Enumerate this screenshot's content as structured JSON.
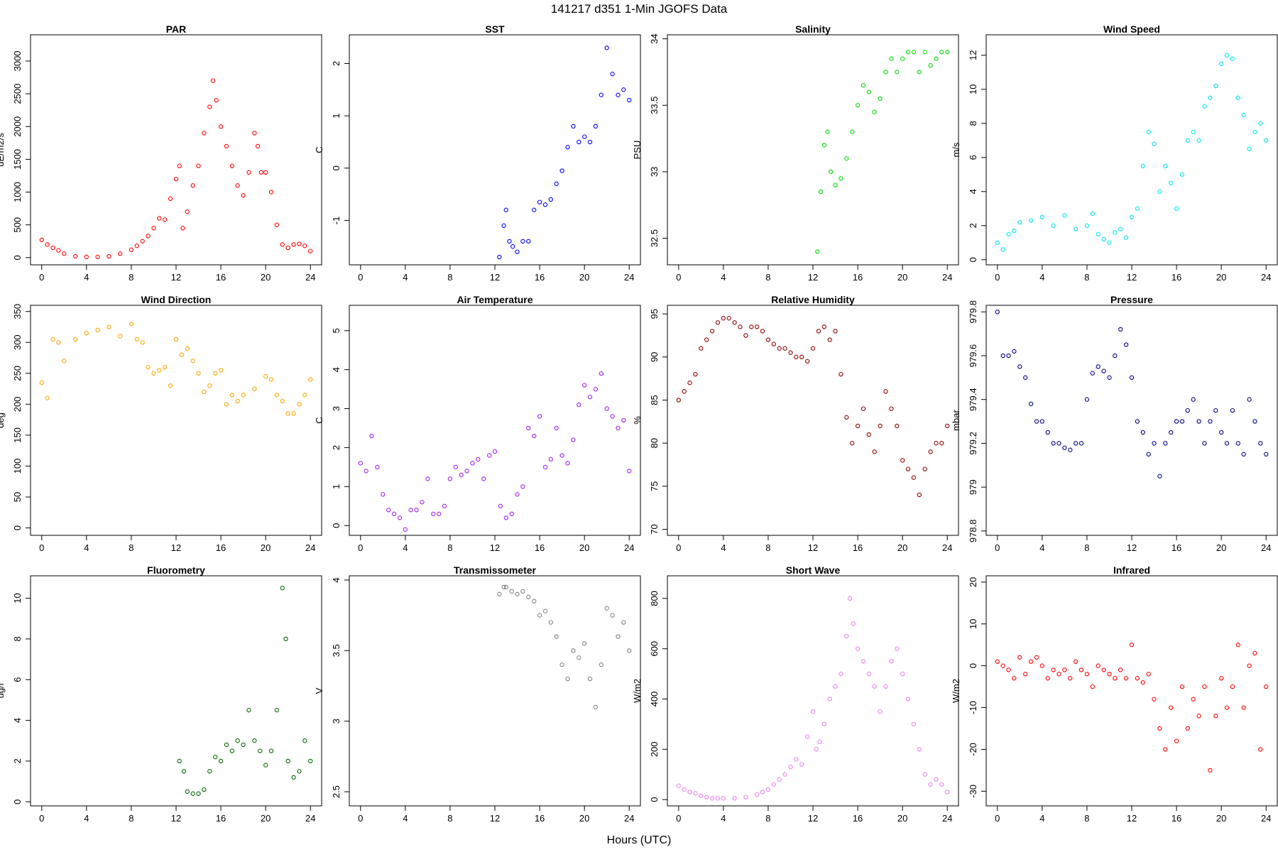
{
  "figure": {
    "title": "141217   d351   1-Min  JGOFS Data",
    "xlabel": "Hours (UTC)"
  },
  "chart_data": [
    {
      "type": "scatter",
      "title": "PAR",
      "ylabel": "uE/m2/s",
      "color": "#ff0000",
      "xlim": [
        -1,
        25
      ],
      "ylim": [
        -110,
        3400
      ],
      "xticks": [
        0,
        4,
        8,
        12,
        16,
        20,
        24
      ],
      "yticks": [
        0,
        500,
        1000,
        1500,
        2000,
        2500,
        3000
      ],
      "x": [
        0,
        0.5,
        1,
        1.5,
        2,
        3,
        4,
        5,
        6,
        7,
        8,
        8.5,
        9,
        9.5,
        10,
        10.5,
        11,
        11.5,
        12,
        12.3,
        12.6,
        13,
        13.5,
        14,
        14.5,
        15,
        15.3,
        15.6,
        16,
        16.5,
        17,
        17.5,
        18,
        18.5,
        19,
        19.3,
        19.6,
        20,
        20.5,
        21,
        21.5,
        22,
        22.5,
        23,
        23.5,
        24
      ],
      "y": [
        270,
        200,
        150,
        110,
        60,
        20,
        10,
        10,
        20,
        60,
        120,
        180,
        250,
        330,
        450,
        600,
        580,
        900,
        1200,
        1400,
        450,
        700,
        1100,
        1400,
        1900,
        2300,
        2700,
        2400,
        2000,
        1700,
        1400,
        1100,
        950,
        1300,
        1900,
        1700,
        1300,
        1300,
        1000,
        500,
        200,
        150,
        200,
        210,
        180,
        100
      ]
    },
    {
      "type": "scatter",
      "title": "SST",
      "ylabel": "C",
      "color": "#0000ff",
      "xlim": [
        -1,
        25
      ],
      "ylim": [
        -1.85,
        2.55
      ],
      "xticks": [
        0,
        4,
        8,
        12,
        16,
        20,
        24
      ],
      "yticks": [
        -1,
        0,
        1,
        2
      ],
      "x": [
        12.4,
        12.8,
        13,
        13.3,
        13.6,
        14,
        14.5,
        15,
        15.5,
        16,
        16.5,
        17,
        17.5,
        18,
        18.5,
        19,
        19.5,
        20,
        20.5,
        21,
        21.5,
        22,
        22.5,
        23,
        23.5,
        24
      ],
      "y": [
        -1.7,
        -1.1,
        -0.8,
        -1.4,
        -1.5,
        -1.6,
        -1.4,
        -1.4,
        -0.8,
        -0.65,
        -0.7,
        -0.6,
        -0.3,
        -0.05,
        0.4,
        0.8,
        0.5,
        0.6,
        0.5,
        0.8,
        1.4,
        2.3,
        1.8,
        1.4,
        1.5,
        1.3
      ]
    },
    {
      "type": "scatter",
      "title": "Salinity",
      "ylabel": "PSU",
      "color": "#00dd00",
      "xlim": [
        -1,
        25
      ],
      "ylim": [
        32.3,
        34.03
      ],
      "xticks": [
        0,
        4,
        8,
        12,
        16,
        20,
        24
      ],
      "yticks": [
        32.5,
        33.0,
        33.5,
        34.0
      ],
      "x": [
        12.4,
        12.7,
        13,
        13.3,
        13.6,
        14,
        14.5,
        15,
        15.5,
        16,
        16.5,
        17,
        17.5,
        18,
        18.5,
        19,
        19.5,
        20,
        20.5,
        21,
        21.5,
        22,
        22.5,
        23,
        23.5,
        24
      ],
      "y": [
        32.4,
        32.85,
        33.2,
        33.3,
        33.0,
        32.9,
        32.95,
        33.1,
        33.3,
        33.5,
        33.65,
        33.6,
        33.45,
        33.55,
        33.75,
        33.85,
        33.75,
        33.85,
        33.9,
        33.9,
        33.75,
        33.9,
        33.8,
        33.85,
        33.9,
        33.9
      ]
    },
    {
      "type": "scatter",
      "title": "Wind Speed",
      "ylabel": "m/s",
      "color": "#00e5ee",
      "xlim": [
        -1,
        25
      ],
      "ylim": [
        -0.3,
        13.2
      ],
      "xticks": [
        0,
        4,
        8,
        12,
        16,
        20,
        24
      ],
      "yticks": [
        0,
        2,
        4,
        6,
        8,
        10,
        12
      ],
      "x": [
        0,
        0.5,
        1,
        1.5,
        2,
        3,
        4,
        5,
        6,
        7,
        8,
        8.5,
        9,
        9.5,
        10,
        10.5,
        11,
        11.5,
        12,
        12.5,
        13,
        13.5,
        14,
        14.5,
        15,
        15.5,
        16,
        16.5,
        17,
        17.5,
        18,
        18.5,
        19,
        19.5,
        20,
        20.5,
        21,
        21.5,
        22,
        22.5,
        23,
        23.5,
        24
      ],
      "y": [
        1,
        0.6,
        1.5,
        1.7,
        2.2,
        2.3,
        2.5,
        2.0,
        2.6,
        1.8,
        2.0,
        2.7,
        1.5,
        1.2,
        1.0,
        1.6,
        1.8,
        1.3,
        2.5,
        3.0,
        5.5,
        7.5,
        6.8,
        4.0,
        5.5,
        4.5,
        3.0,
        5.0,
        7.0,
        7.5,
        7.0,
        9.0,
        9.5,
        10.2,
        11.5,
        12.0,
        11.8,
        9.5,
        8.5,
        6.5,
        7.5,
        8.0,
        7.0
      ]
    },
    {
      "type": "scatter",
      "title": "Wind Direction",
      "ylabel": "deg",
      "color": "#ffa500",
      "xlim": [
        -1,
        25
      ],
      "ylim": [
        -12,
        360
      ],
      "xticks": [
        0,
        4,
        8,
        12,
        16,
        20,
        24
      ],
      "yticks": [
        0,
        50,
        100,
        150,
        200,
        250,
        300,
        350
      ],
      "x": [
        0,
        0.5,
        1,
        1.5,
        2,
        3,
        4,
        5,
        6,
        7,
        8,
        8.5,
        9,
        9.5,
        10,
        10.5,
        11,
        11.5,
        12,
        12.5,
        13,
        13.5,
        14,
        14.5,
        15,
        15.5,
        16,
        16.5,
        17,
        17.5,
        18,
        19,
        20,
        20.5,
        21,
        21.5,
        22,
        22.5,
        23,
        23.5,
        24
      ],
      "y": [
        235,
        210,
        305,
        300,
        270,
        305,
        315,
        320,
        325,
        310,
        330,
        305,
        300,
        260,
        250,
        255,
        260,
        230,
        305,
        280,
        290,
        270,
        250,
        220,
        230,
        250,
        255,
        200,
        215,
        205,
        215,
        225,
        245,
        240,
        215,
        205,
        185,
        185,
        200,
        215,
        240
      ]
    },
    {
      "type": "scatter",
      "title": "Air Temperature",
      "ylabel": "C",
      "color": "#a020f0",
      "xlim": [
        -1,
        25
      ],
      "ylim": [
        -0.25,
        5.65
      ],
      "xticks": [
        0,
        4,
        8,
        12,
        16,
        20,
        24
      ],
      "yticks": [
        0,
        1,
        2,
        3,
        4,
        5
      ],
      "x": [
        0,
        0.5,
        1,
        1.5,
        2,
        2.5,
        3,
        3.5,
        4,
        4.5,
        5,
        5.5,
        6,
        6.5,
        7,
        7.5,
        8,
        8.5,
        9,
        9.5,
        10,
        10.5,
        11,
        11.5,
        12,
        12.5,
        13,
        13.5,
        14,
        14.5,
        15,
        15.5,
        16,
        16.5,
        17,
        17.5,
        18,
        18.5,
        19,
        19.5,
        20,
        20.5,
        21,
        21.5,
        22,
        22.5,
        23,
        23.5,
        24
      ],
      "y": [
        1.6,
        1.4,
        2.3,
        1.5,
        0.8,
        0.4,
        0.3,
        0.2,
        -0.1,
        0.4,
        0.4,
        0.6,
        1.2,
        0.3,
        0.3,
        0.5,
        1.2,
        1.5,
        1.3,
        1.4,
        1.6,
        1.7,
        1.2,
        1.8,
        1.9,
        0.5,
        0.2,
        0.3,
        0.8,
        1.0,
        2.5,
        2.3,
        2.8,
        1.5,
        1.7,
        2.5,
        1.8,
        1.6,
        2.2,
        3.1,
        3.6,
        3.3,
        3.5,
        3.9,
        3.0,
        2.8,
        2.5,
        2.7,
        1.4
      ]
    },
    {
      "type": "scatter",
      "title": "Relative Humidity",
      "ylabel": "%",
      "color": "#8b0000",
      "xlim": [
        -1,
        25
      ],
      "ylim": [
        69.3,
        96
      ],
      "xticks": [
        0,
        4,
        8,
        12,
        16,
        20,
        24
      ],
      "yticks": [
        70,
        75,
        80,
        85,
        90,
        95
      ],
      "x": [
        0,
        0.5,
        1,
        1.5,
        2,
        2.5,
        3,
        3.5,
        4,
        4.5,
        5,
        5.5,
        6,
        6.5,
        7,
        7.5,
        8,
        8.5,
        9,
        9.5,
        10,
        10.5,
        11,
        11.5,
        12,
        12.5,
        13,
        13.5,
        14,
        14.5,
        15,
        15.5,
        16,
        16.5,
        17,
        17.5,
        18,
        18.5,
        19,
        19.5,
        20,
        20.5,
        21,
        21.5,
        22,
        22.5,
        23,
        23.5,
        24
      ],
      "y": [
        85,
        86,
        87,
        88,
        91,
        92,
        93,
        94,
        94.5,
        94.5,
        94,
        93.5,
        92.5,
        93.5,
        93.5,
        93,
        92,
        91.5,
        91,
        91,
        90.5,
        90,
        90,
        89.5,
        91,
        93,
        93.5,
        92,
        93,
        88,
        83,
        80,
        82,
        84,
        81,
        79,
        82,
        86,
        84,
        82,
        78,
        77,
        76,
        74,
        77,
        79,
        80,
        80,
        82
      ]
    },
    {
      "type": "scatter",
      "title": "Pressure",
      "ylabel": "mbar",
      "color": "#000080",
      "xlim": [
        -1,
        25
      ],
      "ylim": [
        978.78,
        979.83
      ],
      "xticks": [
        0,
        4,
        8,
        12,
        16,
        20,
        24
      ],
      "yticks": [
        978.8,
        979.0,
        979.2,
        979.4,
        979.6,
        979.8
      ],
      "x": [
        0,
        0.5,
        1,
        1.5,
        2,
        2.5,
        3,
        3.5,
        4,
        4.5,
        5,
        5.5,
        6,
        6.5,
        7,
        7.5,
        8,
        8.5,
        9,
        9.5,
        10,
        10.5,
        11,
        11.5,
        12,
        12.5,
        13,
        13.5,
        14,
        14.5,
        15,
        15.5,
        16,
        16.5,
        17,
        17.5,
        18,
        18.5,
        19,
        19.5,
        20,
        20.5,
        21,
        21.5,
        22,
        22.5,
        23,
        23.5,
        24
      ],
      "y": [
        979.8,
        979.6,
        979.6,
        979.62,
        979.55,
        979.5,
        979.38,
        979.3,
        979.3,
        979.25,
        979.2,
        979.2,
        979.18,
        979.17,
        979.2,
        979.2,
        979.4,
        979.52,
        979.55,
        979.53,
        979.5,
        979.6,
        979.72,
        979.65,
        979.5,
        979.3,
        979.25,
        979.15,
        979.2,
        979.05,
        979.2,
        979.25,
        979.3,
        979.3,
        979.35,
        979.4,
        979.3,
        979.2,
        979.3,
        979.35,
        979.25,
        979.2,
        979.35,
        979.2,
        979.15,
        979.4,
        979.3,
        979.2,
        979.15
      ]
    },
    {
      "type": "scatter",
      "title": "Fluorometry",
      "ylabel": "ug/l",
      "color": "#006400",
      "xlim": [
        -1,
        25
      ],
      "ylim": [
        -0.2,
        11.1
      ],
      "xticks": [
        0,
        4,
        8,
        12,
        16,
        20,
        24
      ],
      "yticks": [
        0,
        2,
        4,
        6,
        8,
        10
      ],
      "x": [
        12.3,
        12.7,
        13,
        13.5,
        14,
        14.5,
        15,
        15.5,
        16,
        16.5,
        17,
        17.5,
        18,
        18.5,
        19,
        19.5,
        20,
        20.5,
        21,
        21.5,
        21.8,
        22,
        22.5,
        23,
        23.5,
        24
      ],
      "y": [
        2.0,
        1.5,
        0.5,
        0.4,
        0.4,
        0.6,
        1.5,
        2.2,
        2.0,
        2.8,
        2.5,
        3.0,
        2.8,
        4.5,
        3.0,
        2.5,
        1.8,
        2.5,
        4.5,
        10.5,
        8.0,
        2.0,
        1.2,
        1.5,
        3.0,
        2.0
      ]
    },
    {
      "type": "scatter",
      "title": "Transmissometer",
      "ylabel": "V",
      "color": "#808080",
      "xlim": [
        -1,
        25
      ],
      "ylim": [
        2.4,
        4.03
      ],
      "xticks": [
        0,
        4,
        8,
        12,
        16,
        20,
        24
      ],
      "yticks": [
        2.5,
        3.0,
        3.5,
        4.0
      ],
      "x": [
        12.4,
        12.8,
        13,
        13.5,
        14,
        14.5,
        15,
        15.5,
        16,
        16.5,
        17,
        17.5,
        18,
        18.5,
        19,
        19.5,
        20,
        20.5,
        21,
        21.5,
        22,
        22.5,
        23,
        23.5,
        24
      ],
      "y": [
        3.9,
        3.95,
        3.95,
        3.92,
        3.9,
        3.92,
        3.88,
        3.85,
        3.75,
        3.78,
        3.7,
        3.6,
        3.4,
        3.3,
        3.5,
        3.45,
        3.55,
        3.3,
        3.1,
        3.4,
        3.8,
        3.75,
        3.6,
        3.7,
        3.5
      ]
    },
    {
      "type": "scatter",
      "title": "Short Wave",
      "ylabel": "W/m2",
      "color": "#ee82ee",
      "xlim": [
        -1,
        25
      ],
      "ylim": [
        -25,
        890
      ],
      "xticks": [
        0,
        4,
        8,
        12,
        16,
        20,
        24
      ],
      "yticks": [
        0,
        200,
        400,
        600,
        800
      ],
      "x": [
        0,
        0.5,
        1,
        1.5,
        2,
        2.5,
        3,
        3.5,
        4,
        5,
        6,
        7,
        7.5,
        8,
        8.5,
        9,
        9.5,
        10,
        10.5,
        11,
        11.5,
        12,
        12.3,
        12.6,
        13,
        13.5,
        14,
        14.5,
        15,
        15.3,
        15.6,
        16,
        16.5,
        17,
        17.5,
        18,
        18.5,
        19,
        19.5,
        20,
        20.5,
        21,
        21.5,
        22,
        22.5,
        23,
        23.5,
        24
      ],
      "y": [
        55,
        40,
        30,
        25,
        15,
        10,
        5,
        5,
        5,
        5,
        10,
        20,
        30,
        40,
        60,
        80,
        100,
        130,
        160,
        140,
        250,
        350,
        200,
        230,
        300,
        400,
        450,
        500,
        650,
        800,
        700,
        600,
        550,
        500,
        450,
        350,
        450,
        550,
        600,
        500,
        400,
        300,
        200,
        100,
        60,
        80,
        60,
        30
      ]
    },
    {
      "type": "scatter",
      "title": "Infrared",
      "ylabel": "W/m2",
      "color": "#ff0000",
      "xlim": [
        -1,
        25
      ],
      "ylim": [
        -33.5,
        21.5
      ],
      "xticks": [
        0,
        4,
        8,
        12,
        16,
        20,
        24
      ],
      "yticks": [
        -30,
        -20,
        -10,
        0,
        10,
        20
      ],
      "x": [
        0,
        0.5,
        1,
        1.5,
        2,
        2.5,
        3,
        3.5,
        4,
        4.5,
        5,
        5.5,
        6,
        6.5,
        7,
        7.5,
        8,
        8.5,
        9,
        9.5,
        10,
        10.5,
        11,
        11.5,
        12,
        12.5,
        13,
        13.5,
        14,
        14.5,
        15,
        15.5,
        16,
        16.5,
        17,
        17.5,
        18,
        18.5,
        19,
        19.5,
        20,
        20.5,
        21,
        21.5,
        22,
        22.5,
        23,
        23.5,
        24
      ],
      "y": [
        1,
        0,
        -1,
        -3,
        2,
        -2,
        1,
        2,
        0,
        -3,
        -1,
        -2,
        -1,
        -3,
        1,
        -1,
        -2,
        -5,
        0,
        -1,
        -2,
        -3,
        -1,
        -3,
        5,
        -3,
        -4,
        -2,
        -8,
        -15,
        -20,
        -10,
        -18,
        -5,
        -15,
        -8,
        -12,
        -5,
        -25,
        -12,
        -3,
        -10,
        -5,
        5,
        -10,
        0,
        3,
        -20,
        -5
      ]
    }
  ]
}
